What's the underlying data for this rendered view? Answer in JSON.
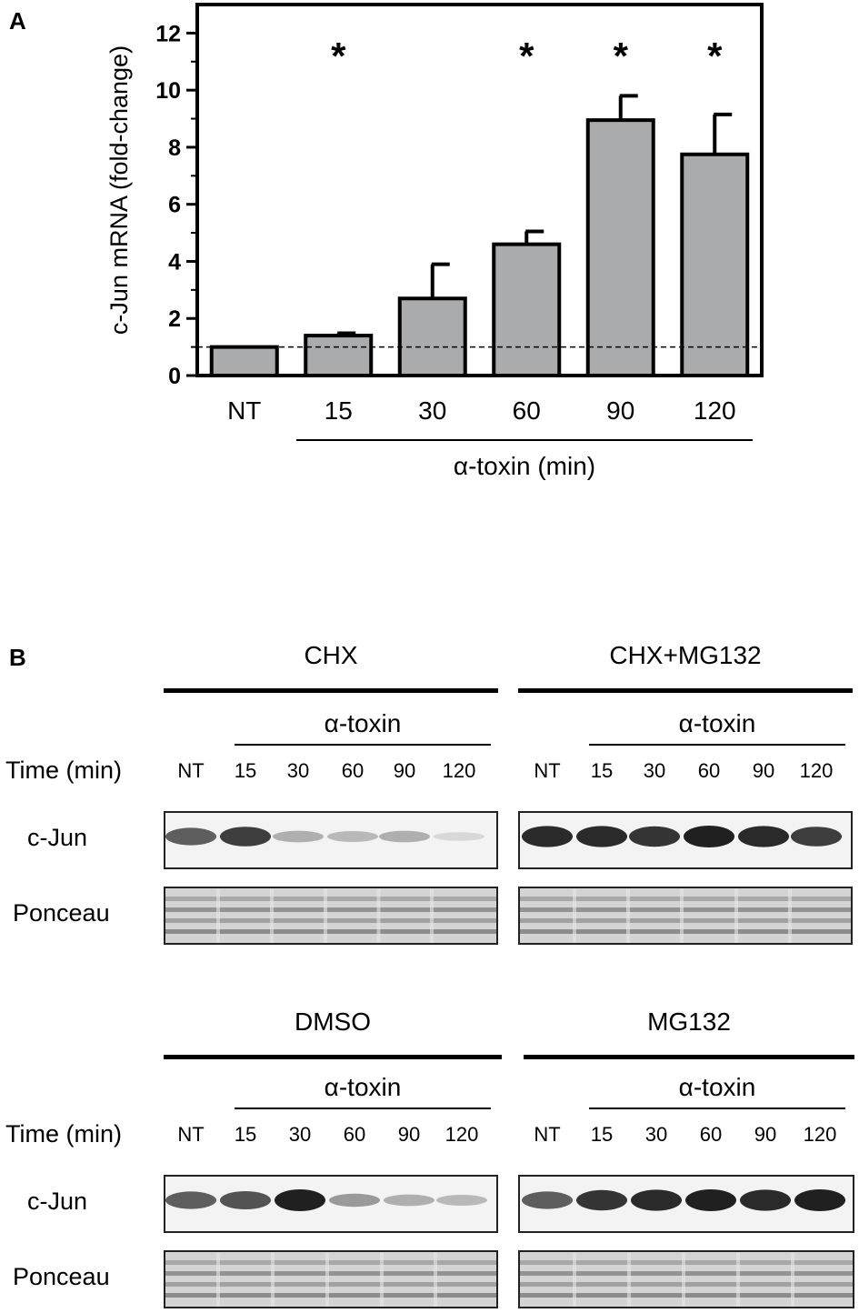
{
  "panel_a": {
    "letter": "A",
    "xgroup_label": "α-toxin (min)"
  },
  "chart_data": {
    "type": "bar",
    "categories": [
      "NT",
      "15",
      "30",
      "60",
      "90",
      "120"
    ],
    "values": [
      1.0,
      1.4,
      2.7,
      4.6,
      8.95,
      7.75
    ],
    "errors": [
      0.0,
      0.08,
      1.2,
      0.45,
      0.85,
      1.4
    ],
    "significant": [
      "",
      "*",
      "",
      "*",
      "*",
      "*"
    ],
    "title": "",
    "xlabel": "",
    "ylabel": "c-Jun mRNA (fold-change)",
    "ylim": [
      0,
      13
    ],
    "yticks": [
      0,
      2,
      4,
      6,
      8,
      10,
      12
    ],
    "reference_line": 1,
    "bar_color": "#a9abad"
  },
  "panel_b": {
    "letter": "B",
    "time_label": "Time (min)",
    "toxin_label": "α-toxin",
    "lanes": [
      "NT",
      "15",
      "30",
      "60",
      "90",
      "120"
    ],
    "row_labels": [
      "c-Jun",
      "Ponceau"
    ],
    "groups": [
      {
        "name": "CHX",
        "cjun_intensity": [
          0.7,
          0.85,
          0.3,
          0.25,
          0.3,
          0.1
        ]
      },
      {
        "name": "CHX+MG132",
        "cjun_intensity": [
          0.95,
          0.95,
          0.9,
          1.0,
          0.95,
          0.85
        ]
      },
      {
        "name": "DMSO",
        "cjun_intensity": [
          0.7,
          0.75,
          1.0,
          0.4,
          0.3,
          0.25
        ]
      },
      {
        "name": "MG132",
        "cjun_intensity": [
          0.7,
          0.9,
          0.95,
          1.0,
          0.95,
          1.0
        ]
      }
    ]
  }
}
